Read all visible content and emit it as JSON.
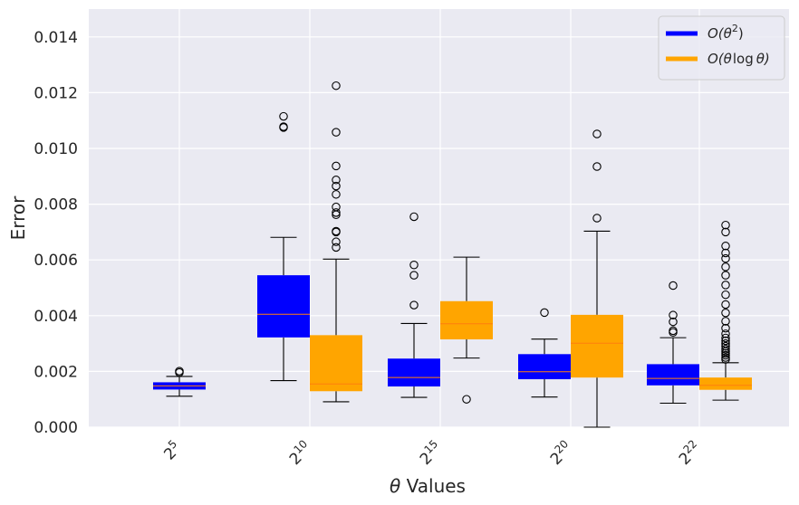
{
  "chart_data": {
    "type": "box",
    "xlabel": "θ Values",
    "ylabel": "Error",
    "ylim": [
      0,
      0.015
    ],
    "grid": true,
    "legend_position": "top-right",
    "yticks": [
      {
        "value": 0,
        "label": "0.000"
      },
      {
        "value": 0.002,
        "label": "0.002"
      },
      {
        "value": 0.004,
        "label": "0.004"
      },
      {
        "value": 0.006,
        "label": "0.006"
      },
      {
        "value": 0.008,
        "label": "0.008"
      },
      {
        "value": 0.01,
        "label": "0.010"
      },
      {
        "value": 0.012,
        "label": "0.012"
      },
      {
        "value": 0.014,
        "label": "0.014"
      }
    ],
    "categories": [
      {
        "base": "2",
        "exp": "5"
      },
      {
        "base": "2",
        "exp": "10"
      },
      {
        "base": "2",
        "exp": "15"
      },
      {
        "base": "2",
        "exp": "20"
      },
      {
        "base": "2",
        "exp": "22"
      }
    ],
    "series": [
      {
        "name": "O(θ²)",
        "legend_main": "O(θ",
        "legend_sup": "2",
        "legend_tail": ")",
        "color": "#0000ff",
        "median_color": "#ff7f0e",
        "boxes": [
          {
            "category": 0,
            "whislo": 0.00111,
            "q1": 0.00135,
            "median": 0.00148,
            "q3": 0.00161,
            "whishi": 0.00182,
            "fliers": [
              0.00196,
              0.00201
            ]
          },
          {
            "category": 1,
            "whislo": 0.00167,
            "q1": 0.00322,
            "median": 0.00405,
            "q3": 0.00545,
            "whishi": 0.00681,
            "fliers": [
              0.01075,
              0.01078,
              0.01115
            ]
          },
          {
            "category": 2,
            "whislo": 0.00107,
            "q1": 0.00146,
            "median": 0.00178,
            "q3": 0.00246,
            "whishi": 0.00372,
            "fliers": [
              0.00438,
              0.00545,
              0.00582,
              0.00755
            ]
          },
          {
            "category": 3,
            "whislo": 0.00108,
            "q1": 0.00172,
            "median": 0.00199,
            "q3": 0.00262,
            "whishi": 0.00316,
            "fliers": [
              0.00411
            ]
          },
          {
            "category": 4,
            "whislo": 0.00086,
            "q1": 0.0015,
            "median": 0.00175,
            "q3": 0.00226,
            "whishi": 0.00321,
            "fliers": [
              0.0034,
              0.00346,
              0.00378,
              0.00402,
              0.00508
            ]
          }
        ]
      },
      {
        "name": "O(θ log θ)",
        "legend_main": "O(θ",
        "legend_log": "log",
        "legend_tail": "θ)",
        "color": "#ffa500",
        "median_color": "#ff7f0e",
        "boxes": [
          {
            "category": 1,
            "whislo": 0.00091,
            "q1": 0.00129,
            "median": 0.00155,
            "q3": 0.0033,
            "whishi": 0.00603,
            "fliers": [
              0.00645,
              0.00665,
              0.007,
              0.00703,
              0.00762,
              0.0077,
              0.0079,
              0.00835,
              0.00865,
              0.00887,
              0.00937,
              0.01058,
              0.01225
            ]
          },
          {
            "category": 2,
            "whislo": 0.00248,
            "q1": 0.00315,
            "median": 0.00371,
            "q3": 0.00452,
            "whishi": 0.0061,
            "fliers": [
              0.001
            ]
          },
          {
            "category": 3,
            "whislo": 0.0,
            "q1": 0.00178,
            "median": 0.00301,
            "q3": 0.00403,
            "whishi": 0.00703,
            "fliers": [
              0.0075,
              0.00935,
              0.01052
            ]
          },
          {
            "category": 4,
            "whislo": 0.00097,
            "q1": 0.00134,
            "median": 0.0015,
            "q3": 0.00178,
            "whishi": 0.00231,
            "fliers": [
              0.00243,
              0.0025,
              0.00258,
              0.00265,
              0.00272,
              0.0028,
              0.0029,
              0.003,
              0.0031,
              0.0032,
              0.00335,
              0.00355,
              0.0038,
              0.0041,
              0.0044,
              0.00475,
              0.0051,
              0.00545,
              0.00575,
              0.00605,
              0.00625,
              0.0065,
              0.007,
              0.00725
            ]
          }
        ]
      }
    ]
  }
}
